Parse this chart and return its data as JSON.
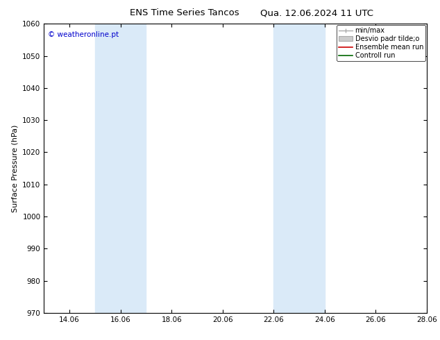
{
  "title": "ENS Time Series Tancos",
  "title2": "Qua. 12.06.2024 11 UTC",
  "ylabel": "Surface Pressure (hPa)",
  "ylim": [
    970,
    1060
  ],
  "yticks": [
    970,
    980,
    990,
    1000,
    1010,
    1020,
    1030,
    1040,
    1050,
    1060
  ],
  "xtick_labels": [
    "14.06",
    "16.06",
    "18.06",
    "20.06",
    "22.06",
    "24.06",
    "26.06",
    "28.06"
  ],
  "xtick_positions": [
    1,
    3,
    5,
    7,
    9,
    11,
    13,
    15
  ],
  "xlim": [
    0,
    15
  ],
  "shade_bands": [
    {
      "x_start": 2,
      "x_end": 4
    },
    {
      "x_start": 9,
      "x_end": 11
    }
  ],
  "shade_color": "#daeaf8",
  "watermark_text": "© weatheronline.pt",
  "watermark_color": "#0000cc",
  "bg_color": "#ffffff",
  "title_fontsize": 9.5,
  "tick_fontsize": 7.5,
  "ylabel_fontsize": 8,
  "legend_fontsize": 7,
  "legend_label_minmax": "min/max",
  "legend_label_desvio": "Desvio padr tilde;o",
  "legend_label_ensemble": "Ensemble mean run",
  "legend_label_control": "Controll run",
  "minmax_color": "#aaaaaa",
  "desvio_facecolor": "#cccccc",
  "desvio_edgecolor": "#aaaaaa",
  "ensemble_color": "#cc0000",
  "control_color": "#006600"
}
